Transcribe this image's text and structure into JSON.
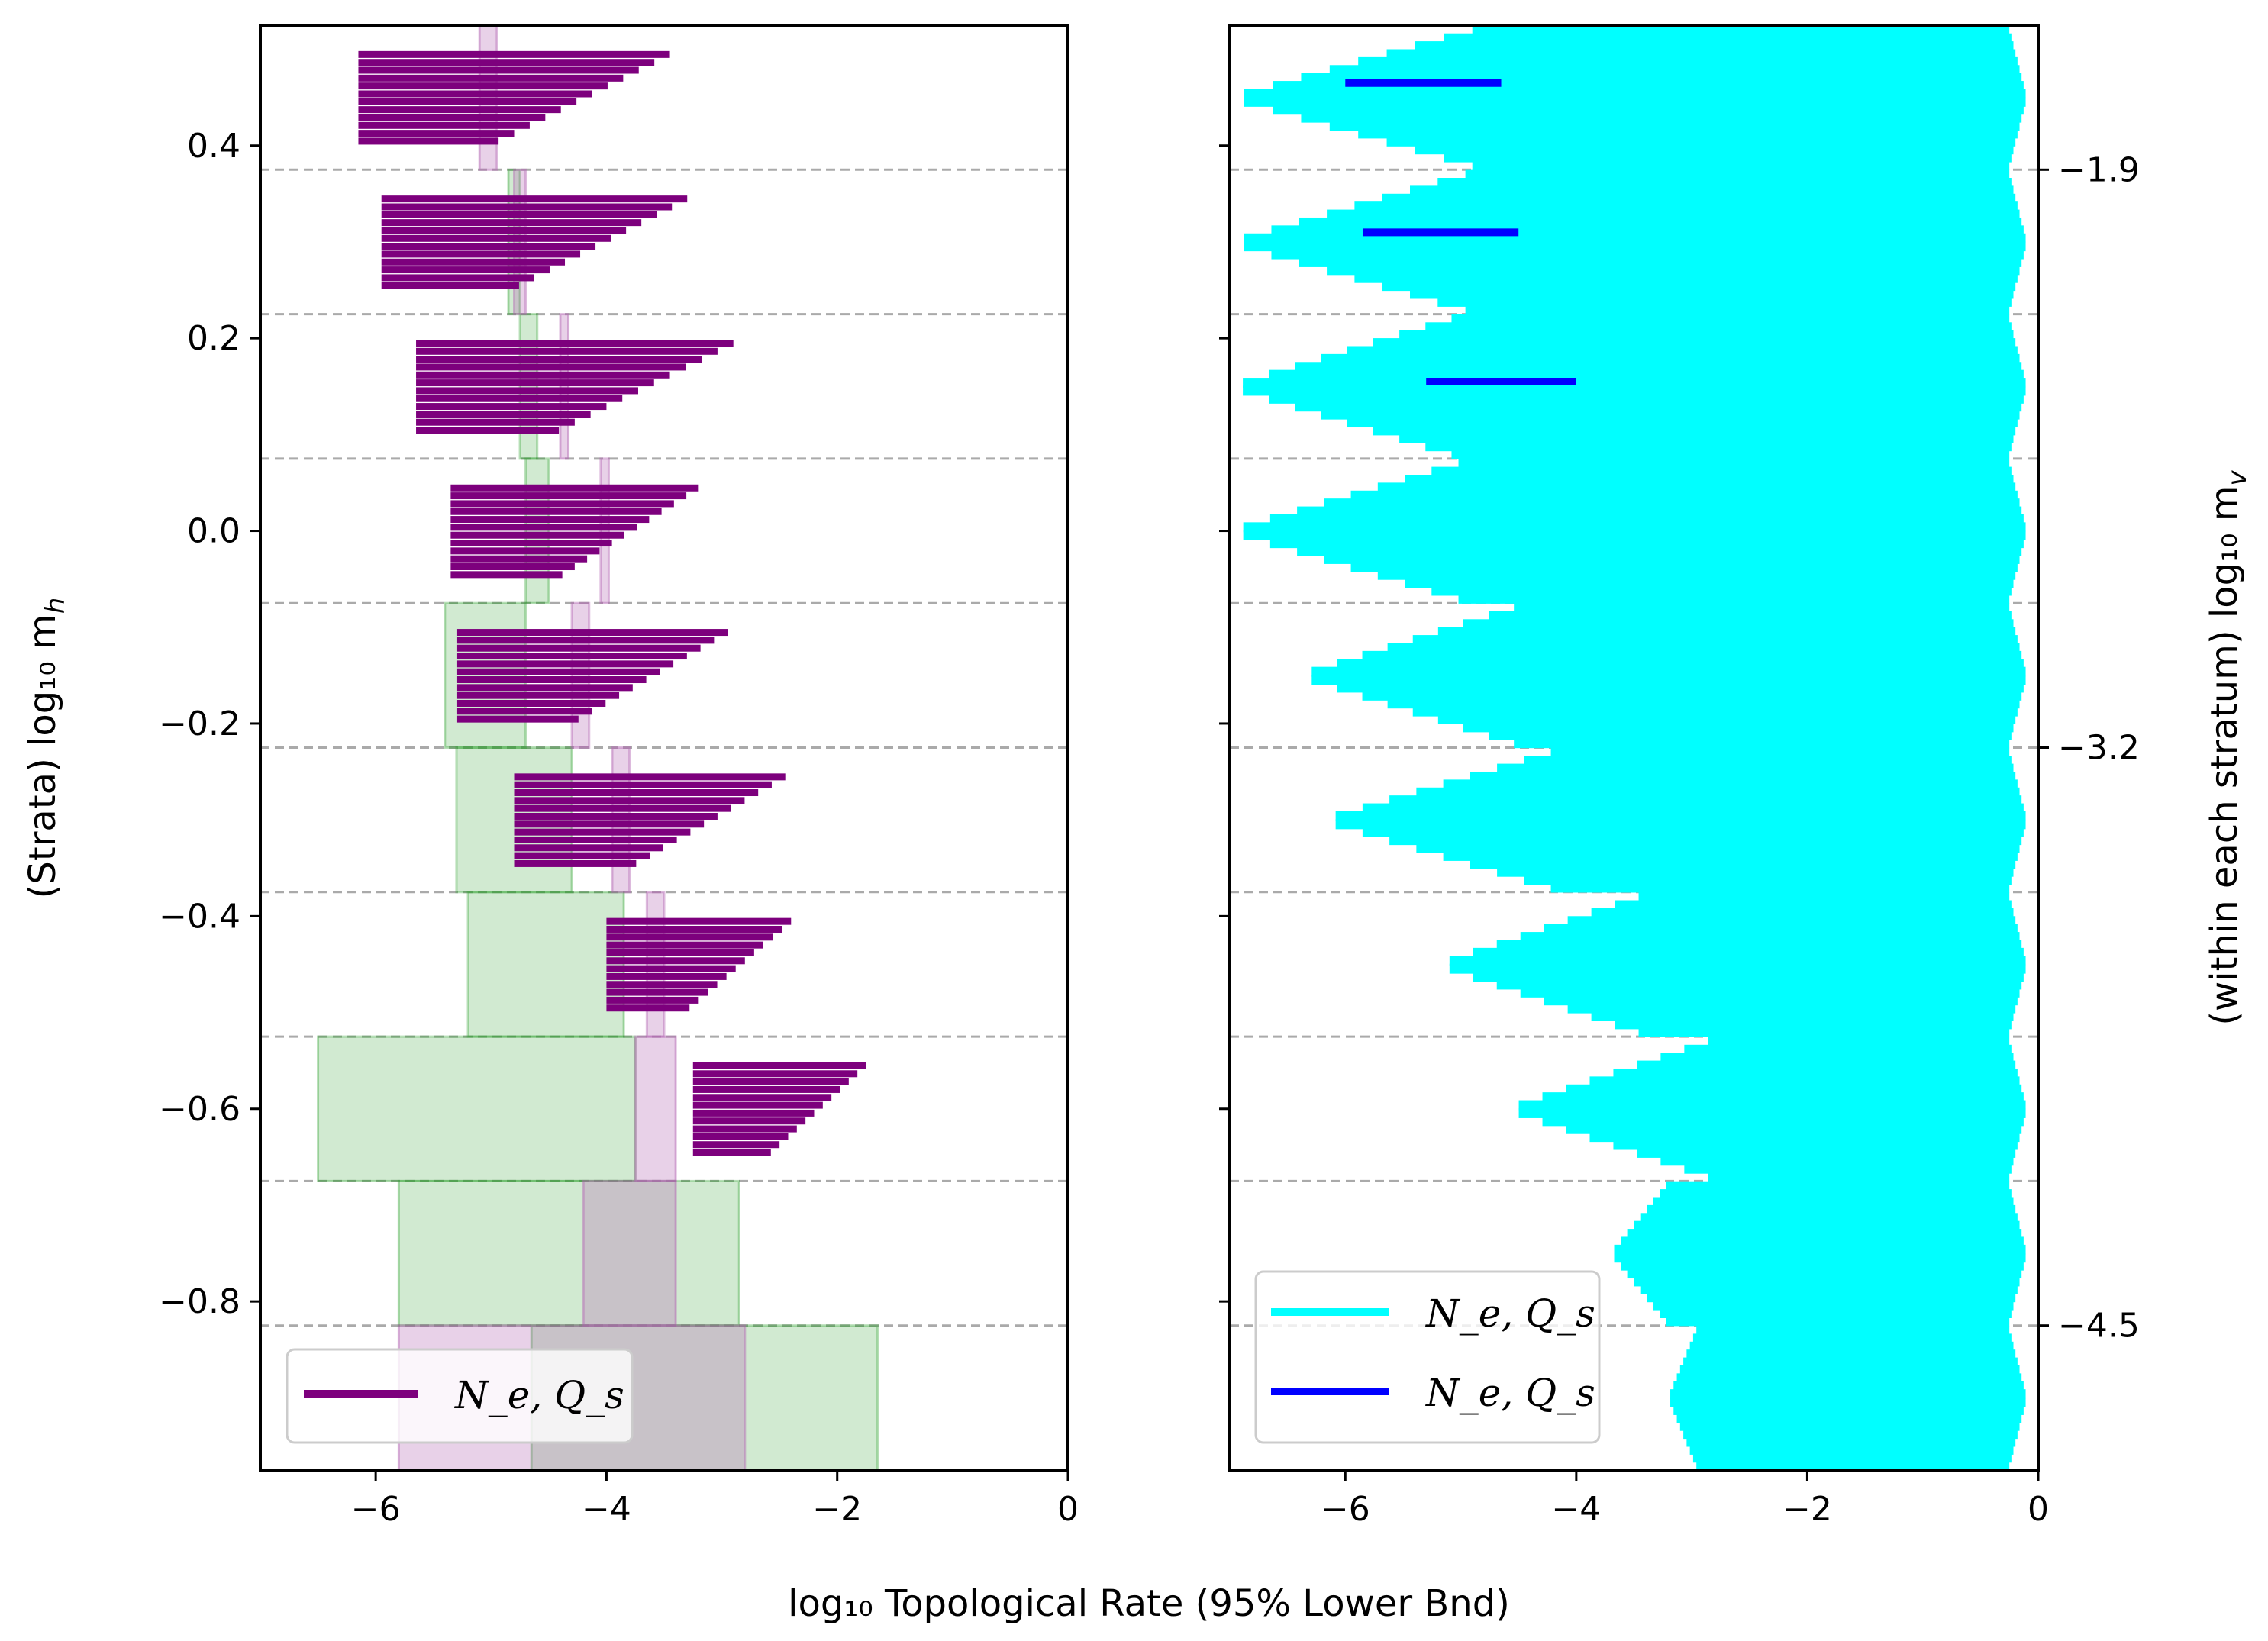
{
  "chart_data": [
    {
      "panel": "left",
      "type": "bar",
      "xlabel": "log₁₀ Topological Rate (95% Lower Bnd)",
      "ylabel": "(Strata) log₁₀ m",
      "ylabel_sub": "h",
      "xlim": [
        -7,
        0
      ],
      "ylim": [
        -0.975,
        0.525
      ],
      "xticks": [
        -6,
        -4,
        -2,
        0
      ],
      "xtick_labels": [
        "−6",
        "−4",
        "−2",
        "0"
      ],
      "yticks": [
        0.4,
        0.2,
        0.0,
        -0.2,
        -0.4,
        -0.6,
        -0.8
      ],
      "ytick_labels": [
        "0.4",
        "0.2",
        "0.0",
        "−0.2",
        "−0.4",
        "−0.6",
        "−0.8"
      ],
      "stratum_boundaries": [
        0.375,
        0.225,
        0.075,
        -0.075,
        -0.225,
        -0.375,
        -0.525,
        -0.675,
        -0.825
      ],
      "colors": {
        "green": "#2ca02c",
        "pink": "#b366b3",
        "gray": "#9a9a9a",
        "purple": "#7d007d",
        "grid": "#aaaaaa"
      },
      "green_boxes": [
        {
          "y0": 0.225,
          "y1": 0.375,
          "x0": -4.85,
          "x1": -4.75
        },
        {
          "y0": 0.075,
          "y1": 0.225,
          "x0": -4.75,
          "x1": -4.6
        },
        {
          "y0": -0.075,
          "y1": 0.075,
          "x0": -4.7,
          "x1": -4.5
        },
        {
          "y0": -0.225,
          "y1": -0.075,
          "x0": -5.4,
          "x1": -4.7
        },
        {
          "y0": -0.375,
          "y1": -0.225,
          "x0": -5.3,
          "x1": -4.3
        },
        {
          "y0": -0.525,
          "y1": -0.375,
          "x0": -5.2,
          "x1": -3.85
        },
        {
          "y0": -0.675,
          "y1": -0.525,
          "x0": -6.5,
          "x1": -3.75
        },
        {
          "y0": -0.825,
          "y1": -0.675,
          "x0": -5.8,
          "x1": -2.85
        },
        {
          "y0": -0.975,
          "y1": -0.825,
          "x0": -4.65,
          "x1": -1.65
        }
      ],
      "pink_boxes": [
        {
          "y0": 0.375,
          "y1": 0.525,
          "x0": -5.1,
          "x1": -4.95
        },
        {
          "y0": 0.225,
          "y1": 0.375,
          "x0": -4.8,
          "x1": -4.7
        },
        {
          "y0": 0.075,
          "y1": 0.225,
          "x0": -4.4,
          "x1": -4.33
        },
        {
          "y0": -0.075,
          "y1": 0.075,
          "x0": -4.05,
          "x1": -3.98
        },
        {
          "y0": -0.225,
          "y1": -0.075,
          "x0": -4.3,
          "x1": -4.15
        },
        {
          "y0": -0.375,
          "y1": -0.225,
          "x0": -3.95,
          "x1": -3.8
        },
        {
          "y0": -0.525,
          "y1": -0.375,
          "x0": -3.65,
          "x1": -3.5
        },
        {
          "y0": -0.675,
          "y1": -0.525,
          "x0": -3.75,
          "x1": -3.4
        },
        {
          "y0": -0.825,
          "y1": -0.675,
          "x0": -4.2,
          "x1": -3.4
        },
        {
          "y0": -0.975,
          "y1": -0.825,
          "x0": -5.8,
          "x1": -2.8
        }
      ],
      "series": [
        {
          "name": "N_e, Q_s",
          "color": "#7d007d",
          "stratum_centers": [
            0.45,
            0.3,
            0.15,
            0.0,
            -0.15,
            -0.3,
            -0.45,
            -0.6
          ]
        }
      ],
      "legend": {
        "label": "N_e, Q_s",
        "position": "lower-left"
      }
    },
    {
      "panel": "right",
      "type": "bar",
      "xlabel": "log₁₀ Topological Rate (95% Lower Bnd)",
      "ylabel": "(within each stratum) log₁₀ m",
      "ylabel_sub": "v",
      "xlim": [
        -7,
        0
      ],
      "ylim": [
        -0.975,
        0.525
      ],
      "xticks": [
        -6,
        -4,
        -2,
        0
      ],
      "xtick_labels": [
        "−6",
        "−4",
        "−2",
        "0"
      ],
      "right_yticks": [
        0.375,
        -0.225,
        -0.825
      ],
      "right_ytick_labels": [
        "−1.9",
        "−3.2",
        "−4.5"
      ],
      "stratum_boundaries": [
        0.375,
        0.225,
        0.075,
        -0.075,
        -0.225,
        -0.375,
        -0.525,
        -0.675,
        -0.825
      ],
      "colors": {
        "cyan": "#00ffff",
        "blue": "#0000ff",
        "grid": "#aaaaaa"
      },
      "series": [
        {
          "name": "N_e, Q_s",
          "color": "#00ffff",
          "stratum_centers": [
            0.45,
            0.3,
            0.15,
            0.0,
            -0.15,
            -0.3,
            -0.45,
            -0.6,
            -0.75,
            -0.9
          ]
        },
        {
          "name": "N_e, Q_s",
          "color": "#0000ff",
          "segments": [
            {
              "y": 0.465,
              "x0": -6.0,
              "x1": -4.65
            },
            {
              "y": 0.31,
              "x0": -5.85,
              "x1": -4.5
            },
            {
              "y": 0.155,
              "x0": -5.3,
              "x1": -4.0
            }
          ]
        }
      ],
      "legend": {
        "labels": [
          "N_e, Q_s",
          "N_e, Q_s"
        ],
        "position": "lower-left"
      }
    }
  ]
}
